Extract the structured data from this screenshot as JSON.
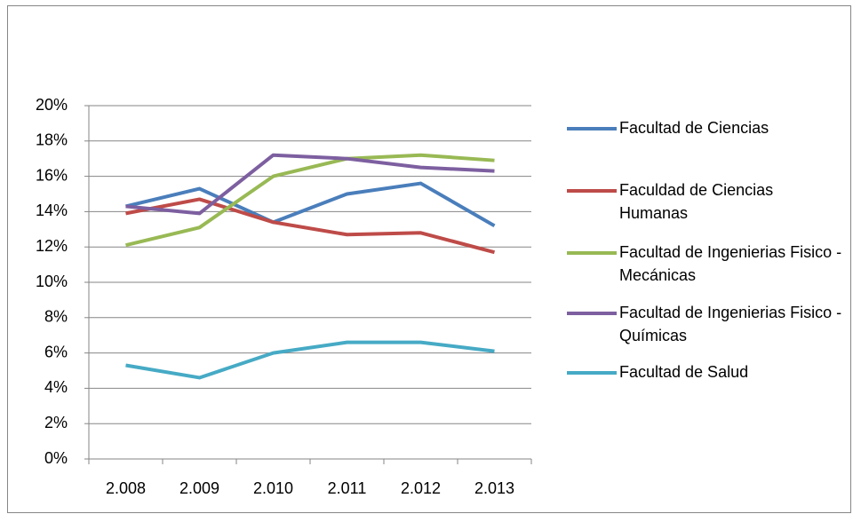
{
  "chart_data": {
    "type": "line",
    "categories": [
      "2.008",
      "2.009",
      "2.010",
      "2.011",
      "2.012",
      "2.013"
    ],
    "series": [
      {
        "name": "Facultad de Ciencias",
        "color": "#4a7ebb",
        "values": [
          14.3,
          15.3,
          13.4,
          15.0,
          15.6,
          13.2
        ]
      },
      {
        "name": "Faculdad de Ciencias Humanas",
        "color": "#be4b48",
        "values": [
          13.9,
          14.7,
          13.4,
          12.7,
          12.8,
          11.7
        ]
      },
      {
        "name": "Facultad de Ingenierias Fisico - Mecánicas",
        "color": "#98b954",
        "values": [
          12.1,
          13.1,
          16.0,
          17.0,
          17.2,
          16.9
        ]
      },
      {
        "name": "Facultad de Ingenierias Fisico - Químicas",
        "color": "#7d5fa0",
        "values": [
          14.3,
          13.9,
          17.2,
          17.0,
          16.5,
          16.3
        ]
      },
      {
        "name": "Facultad de Salud",
        "color": "#46aac5",
        "values": [
          5.3,
          4.6,
          6.0,
          6.6,
          6.6,
          6.1
        ]
      }
    ],
    "ylim": [
      0,
      20
    ],
    "yticks": [
      {
        "value": 0,
        "label": "0%"
      },
      {
        "value": 2,
        "label": "2%"
      },
      {
        "value": 4,
        "label": "4%"
      },
      {
        "value": 6,
        "label": "6%"
      },
      {
        "value": 8,
        "label": "8%"
      },
      {
        "value": 10,
        "label": "10%"
      },
      {
        "value": 12,
        "label": "12%"
      },
      {
        "value": 14,
        "label": "14%"
      },
      {
        "value": 16,
        "label": "16%"
      },
      {
        "value": 18,
        "label": "18%"
      },
      {
        "value": 20,
        "label": "20%"
      }
    ],
    "grid": true,
    "legend": "right"
  }
}
